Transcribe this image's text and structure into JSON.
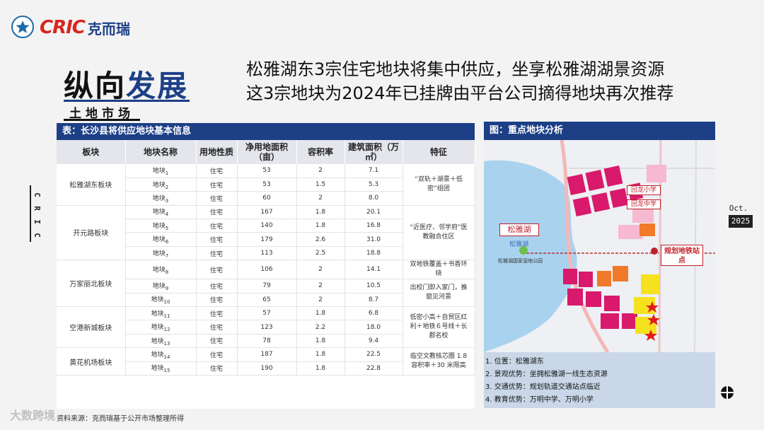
{
  "logo": {
    "latin": "CRIC",
    "cn": "克而瑞"
  },
  "section": {
    "title_a": "纵向",
    "title_b": "发展",
    "subtitle": "土地市场"
  },
  "headline": {
    "line1": "松雅湖东3宗住宅地块将集中供应，坐享松雅湖湖景资源",
    "line2": "这3宗地块为2024年已挂牌由平台公司摘得地块再次推荐"
  },
  "side": {
    "letters": [
      "C",
      "R",
      "I",
      "C"
    ],
    "month": "Oct.",
    "year": "2025"
  },
  "table": {
    "caption": "表：长沙县将供应地块基本信息",
    "columns": [
      "板块",
      "地块名称",
      "用地性质",
      "净用地面积（亩）",
      "容积率",
      "建筑面积（万㎡）",
      "特征"
    ],
    "rows": [
      {
        "name": "地块",
        "sub": "1",
        "use": "住宅",
        "area": "53",
        "far": "2",
        "gfa": "7.1"
      },
      {
        "name": "地块",
        "sub": "2",
        "use": "住宅",
        "area": "53",
        "far": "1.5",
        "gfa": "5.3"
      },
      {
        "name": "地块",
        "sub": "3",
        "use": "住宅",
        "area": "60",
        "far": "2",
        "gfa": "8.0"
      },
      {
        "name": "地块",
        "sub": "4",
        "use": "住宅",
        "area": "167",
        "far": "1.8",
        "gfa": "20.1"
      },
      {
        "name": "地块",
        "sub": "5",
        "use": "住宅",
        "area": "140",
        "far": "1.8",
        "gfa": "16.8"
      },
      {
        "name": "地块",
        "sub": "6",
        "use": "住宅",
        "area": "179",
        "far": "2.6",
        "gfa": "31.0"
      },
      {
        "name": "地块",
        "sub": "7",
        "use": "住宅",
        "area": "113",
        "far": "2.5",
        "gfa": "18.8"
      },
      {
        "name": "地块",
        "sub": "8",
        "use": "住宅",
        "area": "106",
        "far": "2",
        "gfa": "14.1"
      },
      {
        "name": "地块",
        "sub": "9",
        "use": "住宅",
        "area": "79",
        "far": "2",
        "gfa": "10.5"
      },
      {
        "name": "地块",
        "sub": "10",
        "use": "住宅",
        "area": "65",
        "far": "2",
        "gfa": "8.7"
      },
      {
        "name": "地块",
        "sub": "11",
        "use": "住宅",
        "area": "57",
        "far": "1.8",
        "gfa": "6.8"
      },
      {
        "name": "地块",
        "sub": "12",
        "use": "住宅",
        "area": "123",
        "far": "2.2",
        "gfa": "18.0"
      },
      {
        "name": "地块",
        "sub": "13",
        "use": "住宅",
        "area": "78",
        "far": "1.8",
        "gfa": "9.4"
      },
      {
        "name": "地块",
        "sub": "14",
        "use": "住宅",
        "area": "187",
        "far": "1.8",
        "gfa": "22.5"
      },
      {
        "name": "地块",
        "sub": "15",
        "use": "住宅",
        "area": "190",
        "far": "1.8",
        "gfa": "22.8"
      }
    ],
    "blocks": [
      "松雅湖东板块",
      "开元路板块",
      "万家丽北板块",
      "空港新城板块",
      "黄花机场板块"
    ],
    "features": [
      "“双轨＋湖景＋低密”组团",
      "“近医疗、邻学府”医教融合住区",
      "双地铁覆盖＋书香环绕",
      "出校门即入家门，推窗见河景",
      "低密小高＋自贸区红利＋地铁６号线＋长郡名校",
      "临空文教核芯圈 1.8 容积率＋30 米限高"
    ]
  },
  "source": "资料来源：克而瑞基于公开市场整理所得",
  "watermark": "大数跨境",
  "map": {
    "caption": "图：重点地块分析",
    "labels": {
      "lake_box": "松雅湖",
      "lake_name": "松雅湖",
      "school1": "回龙小学",
      "school2": "回龙中学",
      "metro": "规划地铁站点",
      "park": "松雅湖国家湿地公园"
    },
    "info": [
      "1.  位置：松雅湖东",
      "2.  景观优势：坐拥松雅湖一线生态资源",
      "3.  交通优势：规划轨道交通站点临近",
      "4.  教育优势：万明中学、万明小学"
    ]
  },
  "colors": {
    "brand_blue": "#1c3f86",
    "brand_red": "#d7261f",
    "plot_magenta": "#d8196c",
    "plot_yellow": "#f5e21f",
    "plot_orange": "#f07a2a"
  }
}
